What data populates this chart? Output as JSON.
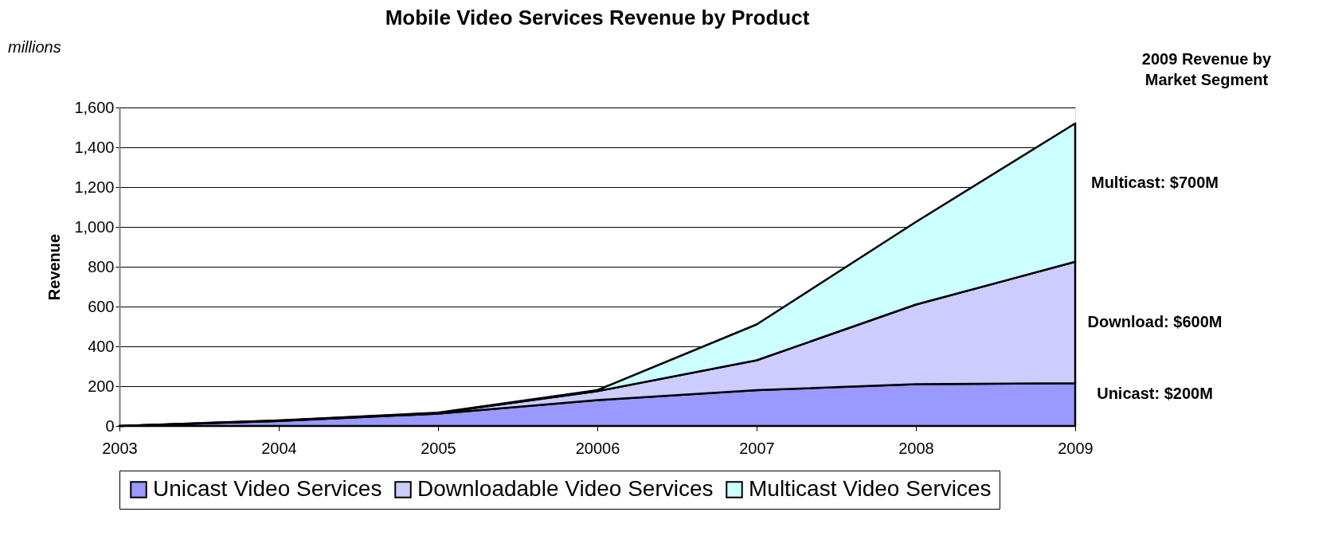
{
  "chart_data": {
    "type": "area",
    "title": "Mobile Video Services Revenue by Product",
    "ylabel": "Revenue",
    "categories": [
      "2003",
      "2004",
      "2005",
      "20006",
      "2007",
      "2008",
      "2009"
    ],
    "stacked": true,
    "series": [
      {
        "name": "Unicast Video Services",
        "color": "#9999ff",
        "values": [
          0,
          25,
          62,
          130,
          180,
          210,
          215
        ]
      },
      {
        "name": "Downloadable Video Services",
        "color": "#ccccff",
        "values": [
          0,
          2,
          3,
          45,
          150,
          400,
          610
        ]
      },
      {
        "name": "Multicast Video Services",
        "color": "#ccffff",
        "values": [
          0,
          1,
          2,
          5,
          180,
          415,
          695
        ]
      }
    ],
    "ylim": [
      0,
      1600
    ],
    "yticks": [
      0,
      200,
      400,
      600,
      800,
      {
        "value": 1000,
        "label": "1,000"
      },
      {
        "value": 1200,
        "label": "1,200"
      },
      {
        "value": 1400,
        "label": "1,400"
      },
      {
        "value": 1600,
        "label": "1,600"
      }
    ],
    "grid": "y",
    "legend": "bottom",
    "annotations": [
      "millions",
      "2009 Revenue by Market Segment",
      "Multicast:    $700M",
      "Download:  $600M",
      "Unicast:      $200M"
    ]
  }
}
